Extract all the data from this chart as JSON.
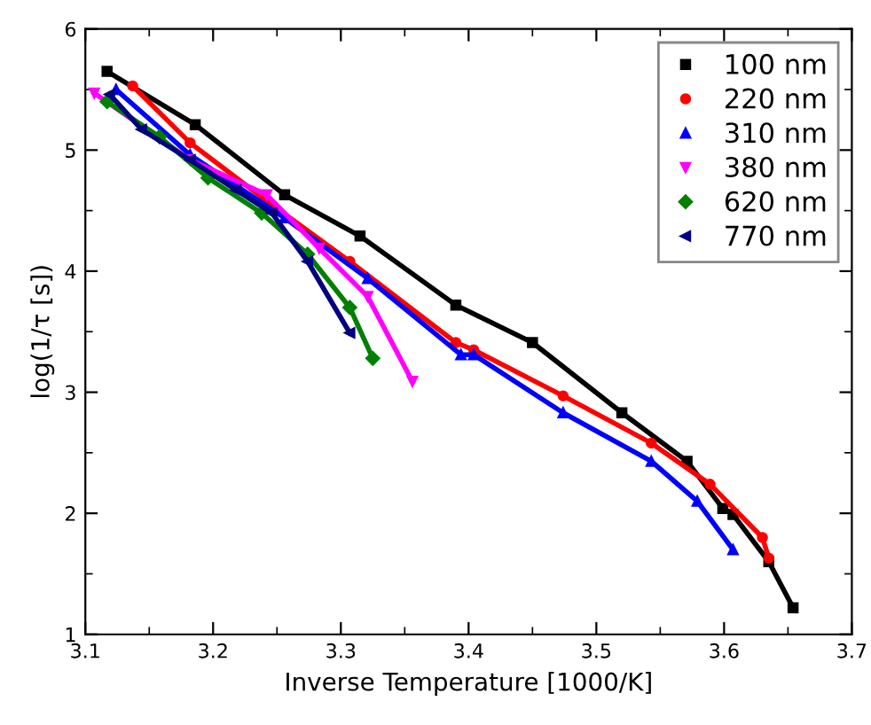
{
  "chart_data": {
    "type": "line",
    "xlabel": "Inverse Temperature [1000/K]",
    "ylabel": "log(1/τ [s])",
    "xlim": [
      3.1,
      3.7
    ],
    "ylim": [
      1,
      6
    ],
    "xticks": [
      3.1,
      3.2,
      3.3,
      3.4,
      3.5,
      3.6,
      3.7
    ],
    "yticks": [
      1,
      2,
      3,
      4,
      5,
      6
    ],
    "grid": false,
    "legend": "top right",
    "line_style": "solid",
    "series": [
      {
        "name": "100 nm",
        "color": "#000000",
        "marker": "square",
        "x": [
          3.117,
          3.186,
          3.256,
          3.315,
          3.39,
          3.45,
          3.52,
          3.571,
          3.599,
          3.607,
          3.635,
          3.654
        ],
        "values": [
          5.65,
          5.21,
          4.63,
          4.29,
          3.72,
          3.41,
          2.83,
          2.43,
          2.04,
          1.99,
          1.6,
          1.22
        ]
      },
      {
        "name": "220 nm",
        "color": "#ff0000",
        "marker": "circle",
        "x": [
          3.137,
          3.182,
          3.242,
          3.307,
          3.39,
          3.404,
          3.474,
          3.543,
          3.589,
          3.63,
          3.635
        ],
        "values": [
          5.53,
          5.06,
          4.58,
          4.08,
          3.41,
          3.35,
          2.97,
          2.58,
          2.24,
          1.8,
          1.63
        ]
      },
      {
        "name": "310 nm",
        "color": "#0000ff",
        "marker": "triangle",
        "x": [
          3.124,
          3.182,
          3.256,
          3.321,
          3.394,
          3.404,
          3.474,
          3.543,
          3.579,
          3.607
        ],
        "values": [
          5.5,
          4.96,
          4.44,
          3.94,
          3.31,
          3.31,
          2.83,
          2.43,
          2.1,
          1.7
        ]
      },
      {
        "name": "380 nm",
        "color": "#ff00ff",
        "marker": "triangle_down",
        "x": [
          3.107,
          3.182,
          3.242,
          3.283,
          3.321,
          3.356
        ],
        "values": [
          5.47,
          4.92,
          4.63,
          4.19,
          3.79,
          3.09
        ]
      },
      {
        "name": "620 nm",
        "color": "#008000",
        "marker": "diamond",
        "x": [
          3.117,
          3.158,
          3.196,
          3.238,
          3.274,
          3.307,
          3.325
        ],
        "values": [
          5.4,
          5.11,
          4.77,
          4.48,
          4.14,
          3.7,
          3.28
        ]
      },
      {
        "name": "770 nm",
        "color": "#000080",
        "marker": "triangle_left",
        "x": [
          3.119,
          3.144,
          3.182,
          3.218,
          3.246,
          3.274,
          3.307
        ],
        "values": [
          5.46,
          5.17,
          4.92,
          4.67,
          4.48,
          4.08,
          3.49
        ]
      }
    ]
  }
}
